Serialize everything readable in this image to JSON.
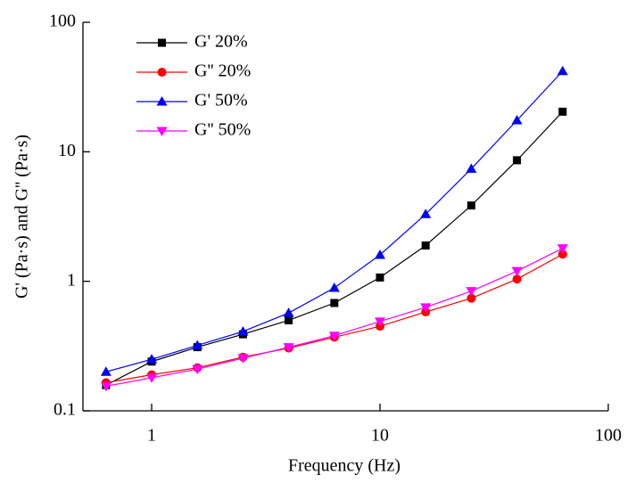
{
  "chart_data": {
    "type": "line",
    "x_label": "Frequency (Hz)",
    "y_label": "G' (Pa·s) and G'' (Pa·s)",
    "x_scale": "log",
    "y_scale": "log",
    "x": [
      0.631,
      1,
      1.585,
      2.512,
      3.981,
      6.31,
      10,
      15.85,
      25.12,
      39.81,
      63.1
    ],
    "series": [
      {
        "name": "G'  20%",
        "color": "#000000",
        "marker": "square",
        "values": [
          0.158,
          0.24,
          0.31,
          0.39,
          0.5,
          0.68,
          1.07,
          1.89,
          3.85,
          8.6,
          20.4
        ]
      },
      {
        "name": "G''  20%",
        "color": "#ff0000",
        "marker": "circle",
        "values": [
          0.165,
          0.19,
          0.215,
          0.26,
          0.305,
          0.37,
          0.45,
          0.58,
          0.74,
          1.04,
          1.62
        ]
      },
      {
        "name": "G'  50%",
        "color": "#0000ff",
        "marker": "triangle-up",
        "values": [
          0.2,
          0.25,
          0.32,
          0.41,
          0.57,
          0.89,
          1.6,
          3.3,
          7.4,
          17.5,
          42
        ]
      },
      {
        "name": "G''  50%",
        "color": "#ff00ff",
        "marker": "triangle-down",
        "values": [
          0.155,
          0.18,
          0.21,
          0.255,
          0.31,
          0.38,
          0.49,
          0.63,
          0.84,
          1.2,
          1.8
        ]
      }
    ],
    "xlim": [
      0.5,
      100
    ],
    "ylim": [
      0.1,
      100
    ],
    "xticks": [
      1,
      10,
      100
    ],
    "yticks": [
      0.1,
      1,
      10,
      100
    ],
    "legend": "upper left",
    "grid": false
  }
}
